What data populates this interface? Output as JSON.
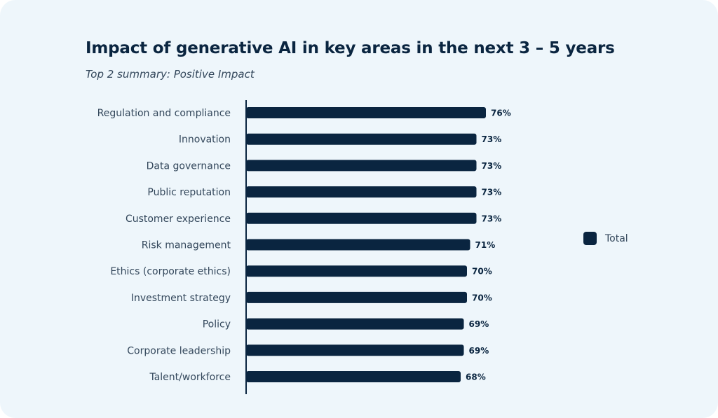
{
  "chart_data": {
    "type": "bar",
    "orientation": "horizontal",
    "title": "Impact of generative AI in key areas in the next 3 – 5 years",
    "subtitle": "Top 2 summary: Positive Impact",
    "categories": [
      "Regulation and compliance",
      "Innovation",
      "Data governance",
      "Public reputation",
      "Customer experience",
      "Risk management",
      "Ethics (corporate ethics)",
      "Investment strategy",
      "Policy",
      "Corporate leadership",
      "Talent/workforce"
    ],
    "series": [
      {
        "name": "Total",
        "values": [
          76,
          73,
          73,
          73,
          73,
          71,
          70,
          70,
          69,
          69,
          68
        ],
        "data_labels": [
          "76%",
          "73%",
          "73%",
          "73%",
          "73%",
          "71%",
          "70%",
          "70%",
          "69%",
          "69%",
          "68%"
        ],
        "color": "#0a2540"
      }
    ],
    "xlim": [
      0,
      100
    ],
    "value_unit": "%",
    "grid": false,
    "legend_position": "right"
  },
  "colors": {
    "background": "#eef6fb",
    "bar": "#0a2540",
    "axis": "#0a2540"
  }
}
